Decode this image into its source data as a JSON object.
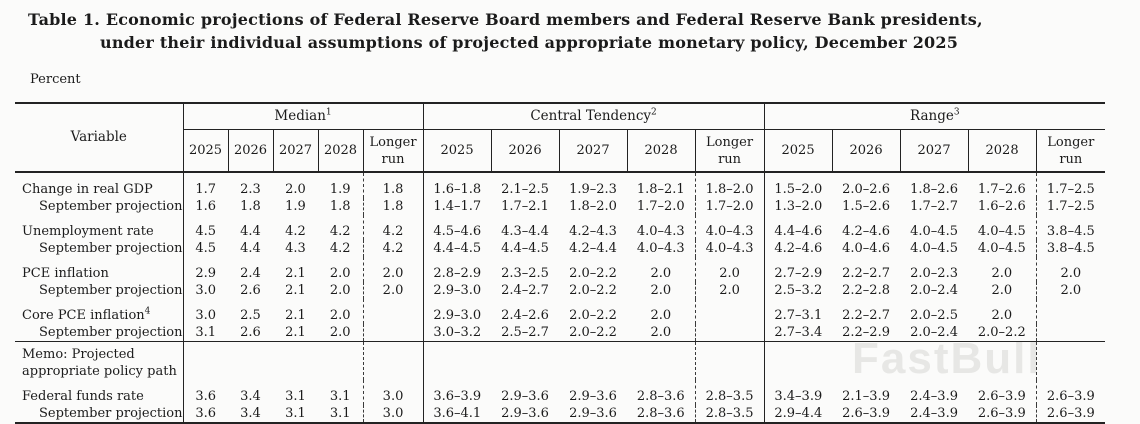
{
  "title": {
    "line1": "Table 1. Economic projections of Federal Reserve Board members and Federal Reserve Bank presidents,",
    "line2": "under their individual assumptions of projected appropriate monetary policy, December 2025"
  },
  "unit_label": "Percent",
  "watermark": "FastBull",
  "colors": {
    "background": "#fbfbfa",
    "text": "#1b1b1b",
    "rule": "#232323"
  },
  "table": {
    "variable_header": "Variable",
    "sections": [
      {
        "label": "Median",
        "footnote": "1"
      },
      {
        "label": "Central Tendency",
        "footnote": "2"
      },
      {
        "label": "Range",
        "footnote": "3"
      }
    ],
    "year_headers": [
      "2025",
      "2026",
      "2027",
      "2028",
      "Longer run"
    ],
    "rows": [
      {
        "label": "Change in real GDP",
        "group_start": true,
        "median": [
          "1.7",
          "2.3",
          "2.0",
          "1.9",
          "1.8"
        ],
        "central": [
          "1.6–1.8",
          "2.1–2.5",
          "1.9–2.3",
          "1.8–2.1",
          "1.8–2.0"
        ],
        "range": [
          "1.5–2.0",
          "2.0–2.6",
          "1.8–2.6",
          "1.7–2.6",
          "1.7–2.5"
        ]
      },
      {
        "label": "September projection",
        "indent": true,
        "median": [
          "1.6",
          "1.8",
          "1.9",
          "1.8",
          "1.8"
        ],
        "central": [
          "1.4–1.7",
          "1.7–2.1",
          "1.8–2.0",
          "1.7–2.0",
          "1.7–2.0"
        ],
        "range": [
          "1.3–2.0",
          "1.5–2.6",
          "1.7–2.7",
          "1.6–2.6",
          "1.7–2.5"
        ]
      },
      {
        "label": "Unemployment rate",
        "group_start": true,
        "median": [
          "4.5",
          "4.4",
          "4.2",
          "4.2",
          "4.2"
        ],
        "central": [
          "4.5–4.6",
          "4.3–4.4",
          "4.2–4.3",
          "4.0–4.3",
          "4.0–4.3"
        ],
        "range": [
          "4.4–4.6",
          "4.2–4.6",
          "4.0–4.5",
          "4.0–4.5",
          "3.8–4.5"
        ]
      },
      {
        "label": "September projection",
        "indent": true,
        "median": [
          "4.5",
          "4.4",
          "4.3",
          "4.2",
          "4.2"
        ],
        "central": [
          "4.4–4.5",
          "4.4–4.5",
          "4.2–4.4",
          "4.0–4.3",
          "4.0–4.3"
        ],
        "range": [
          "4.2–4.6",
          "4.0–4.6",
          "4.0–4.5",
          "4.0–4.5",
          "3.8–4.5"
        ]
      },
      {
        "label": "PCE inflation",
        "group_start": true,
        "median": [
          "2.9",
          "2.4",
          "2.1",
          "2.0",
          "2.0"
        ],
        "central": [
          "2.8–2.9",
          "2.3–2.5",
          "2.0–2.2",
          "2.0",
          "2.0"
        ],
        "range": [
          "2.7–2.9",
          "2.2–2.7",
          "2.0–2.3",
          "2.0",
          "2.0"
        ]
      },
      {
        "label": "September projection",
        "indent": true,
        "median": [
          "3.0",
          "2.6",
          "2.1",
          "2.0",
          "2.0"
        ],
        "central": [
          "2.9–3.0",
          "2.4–2.7",
          "2.0–2.2",
          "2.0",
          "2.0"
        ],
        "range": [
          "2.5–3.2",
          "2.2–2.8",
          "2.0–2.4",
          "2.0",
          "2.0"
        ]
      },
      {
        "label": "Core PCE inflation",
        "footnote": "4",
        "group_start": true,
        "median": [
          "3.0",
          "2.5",
          "2.1",
          "2.0",
          ""
        ],
        "central": [
          "2.9–3.0",
          "2.4–2.6",
          "2.0–2.2",
          "2.0",
          ""
        ],
        "range": [
          "2.7–3.1",
          "2.2–2.7",
          "2.0–2.5",
          "2.0",
          ""
        ]
      },
      {
        "label": "September projection",
        "indent": true,
        "median": [
          "3.1",
          "2.6",
          "2.1",
          "2.0",
          ""
        ],
        "central": [
          "3.0–3.2",
          "2.5–2.7",
          "2.0–2.2",
          "2.0",
          ""
        ],
        "range": [
          "2.7–3.4",
          "2.2–2.9",
          "2.0–2.4",
          "2.0–2.2",
          ""
        ]
      },
      {
        "label_lines": [
          "Memo: Projected",
          "appropriate policy path"
        ],
        "memo": true,
        "rule_above": true,
        "median": [
          "",
          "",
          "",
          "",
          ""
        ],
        "central": [
          "",
          "",
          "",
          "",
          ""
        ],
        "range": [
          "",
          "",
          "",
          "",
          ""
        ]
      },
      {
        "label": "Federal funds rate",
        "group_start": true,
        "median": [
          "3.6",
          "3.4",
          "3.1",
          "3.1",
          "3.0"
        ],
        "central": [
          "3.6–3.9",
          "2.9–3.6",
          "2.9–3.6",
          "2.8–3.6",
          "2.8–3.5"
        ],
        "range": [
          "3.4–3.9",
          "2.1–3.9",
          "2.4–3.9",
          "2.6–3.9",
          "2.6–3.9"
        ]
      },
      {
        "label": "September projection",
        "indent": true,
        "median": [
          "3.6",
          "3.4",
          "3.1",
          "3.1",
          "3.0"
        ],
        "central": [
          "3.6–4.1",
          "2.9–3.6",
          "2.9–3.6",
          "2.8–3.6",
          "2.8–3.5"
        ],
        "range": [
          "2.9–4.4",
          "2.6–3.9",
          "2.4–3.9",
          "2.6–3.9",
          "2.6–3.9"
        ]
      }
    ]
  }
}
